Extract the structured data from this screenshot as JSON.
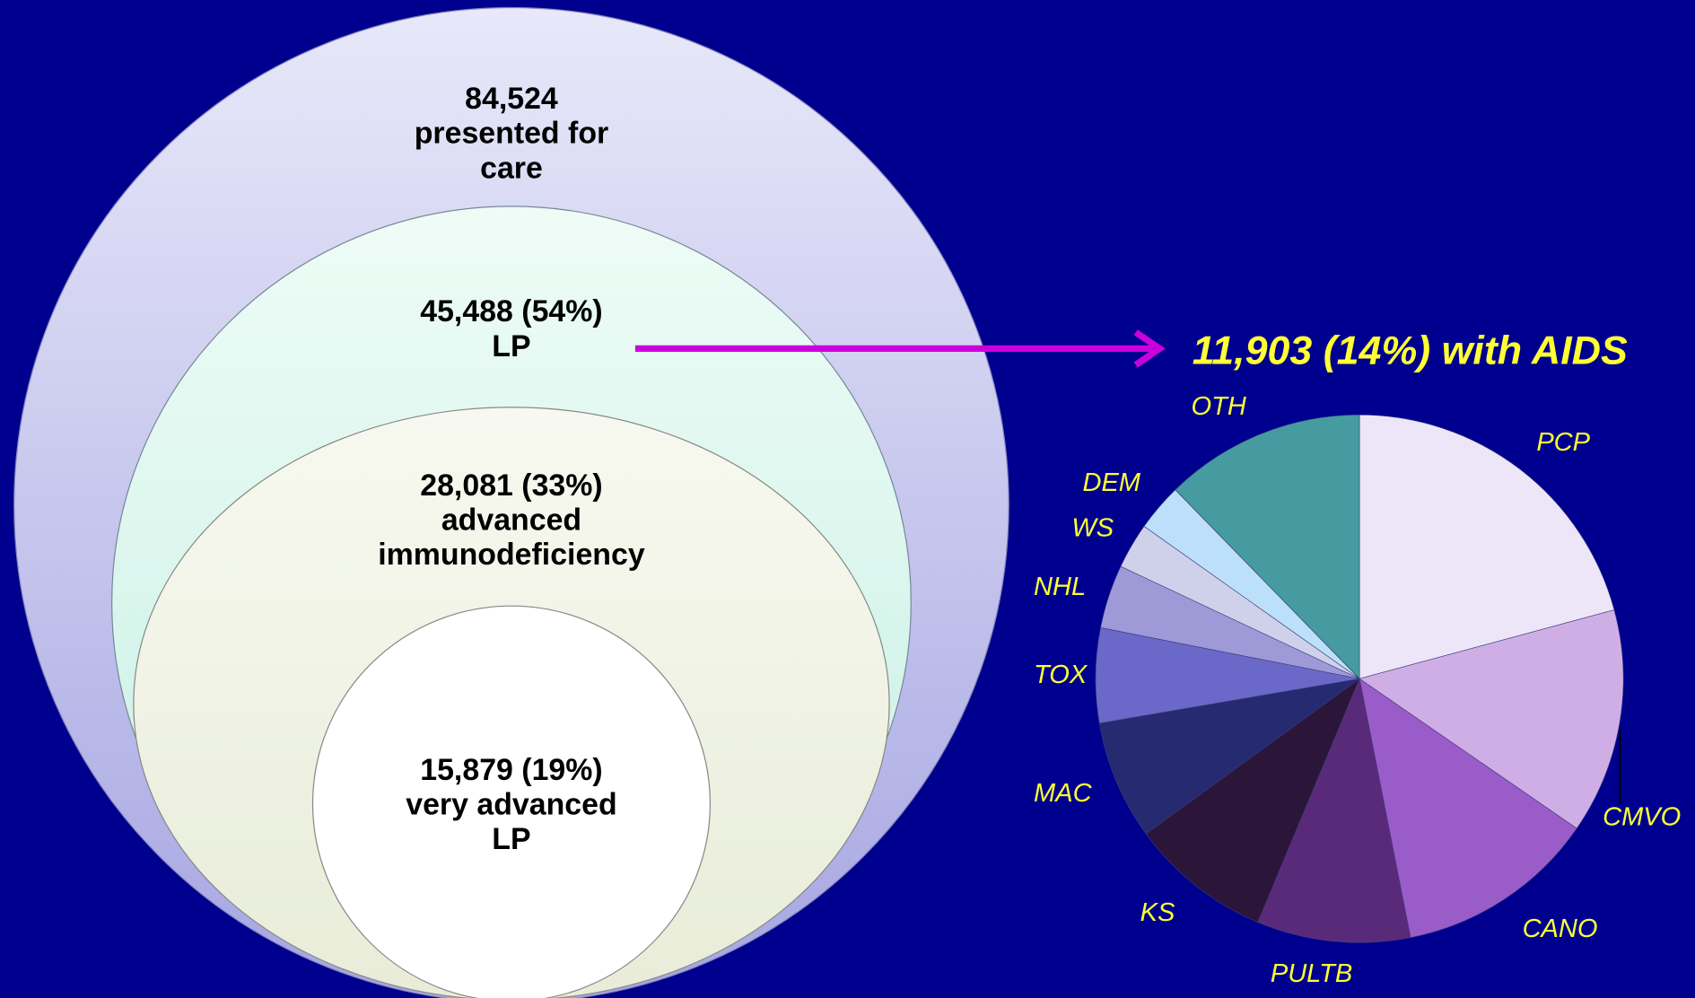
{
  "diagram": {
    "circles": [
      {
        "lines": [
          "84,524",
          "presented for",
          "care"
        ]
      },
      {
        "lines": [
          "45,488  (54%)",
          "LP"
        ]
      },
      {
        "lines": [
          "28,081 (33%)",
          "advanced",
          "immunodeficiency"
        ]
      },
      {
        "lines": [
          "15,879 (19%)",
          "very advanced",
          "LP"
        ]
      }
    ]
  },
  "chart_data": {
    "type": "pie",
    "title": "11,903 (14%) with AIDS",
    "categories": [
      "PCP",
      "CMVO",
      "CANO",
      "PULTB",
      "KS",
      "MAC",
      "TOX",
      "NHL",
      "WS",
      "DEM",
      "OTH"
    ],
    "values": [
      20.8,
      13.8,
      12.3,
      9.4,
      8.7,
      7.3,
      5.8,
      3.9,
      2.8,
      2.9,
      12.3
    ],
    "colors": [
      "#ede6f8",
      "#cfaee6",
      "#9a5cc8",
      "#5a2a7a",
      "#2b1538",
      "#262a70",
      "#6a68c8",
      "#9e9ad8",
      "#cfd0ea",
      "#bde0fa",
      "#459ba0"
    ]
  }
}
